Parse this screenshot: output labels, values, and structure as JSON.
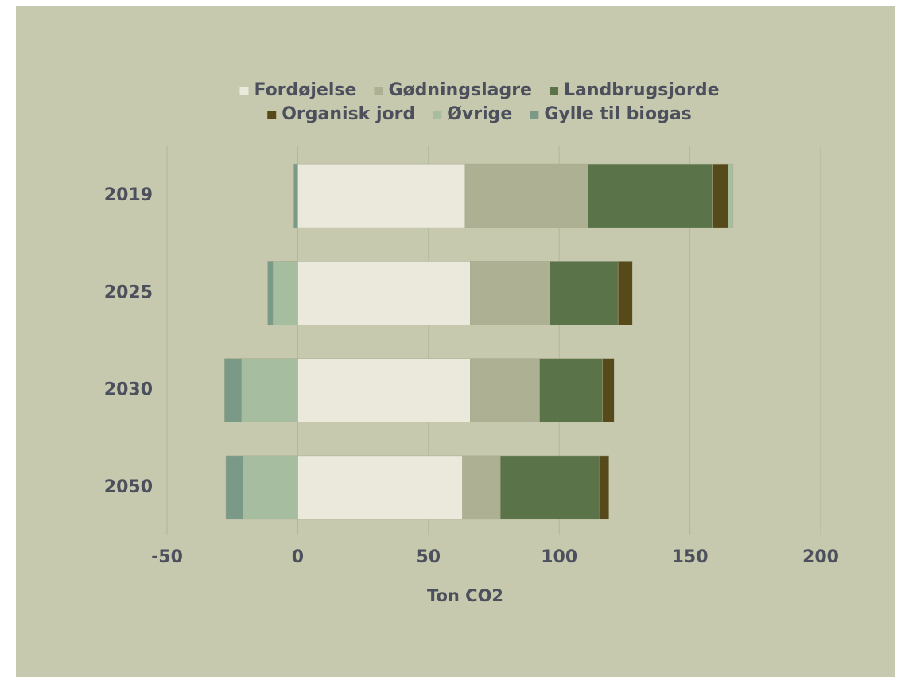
{
  "chart_data": {
    "type": "stacked-barh",
    "categories": [
      "2019",
      "2025",
      "2030",
      "2050"
    ],
    "series": [
      {
        "name": "Fordøjelse",
        "color": "#ebe9dc",
        "values": [
          64,
          66,
          66,
          63
        ]
      },
      {
        "name": "Gødningslagre",
        "color": "#adb092",
        "values": [
          47,
          30.5,
          26.5,
          14.5
        ]
      },
      {
        "name": "Landbrugsjorde",
        "color": "#5a7349",
        "values": [
          47.5,
          26,
          24,
          38
        ]
      },
      {
        "name": "Organisk jord",
        "color": "#574a1a",
        "values": [
          6,
          5.5,
          4.5,
          3.5
        ]
      },
      {
        "name": "Øvrige",
        "color": "#a7bd9f",
        "values": [
          2,
          -9.5,
          -21.5,
          -21
        ]
      },
      {
        "name": "Gylle til biogas",
        "color": "#7a9a87",
        "values": [
          -1.5,
          -2,
          -6.5,
          -6.5
        ]
      }
    ],
    "xlabel": "Ton CO2",
    "xlim": [
      -50,
      200
    ],
    "xticks": [
      -50,
      0,
      50,
      100,
      150,
      200
    ],
    "grid": true
  }
}
